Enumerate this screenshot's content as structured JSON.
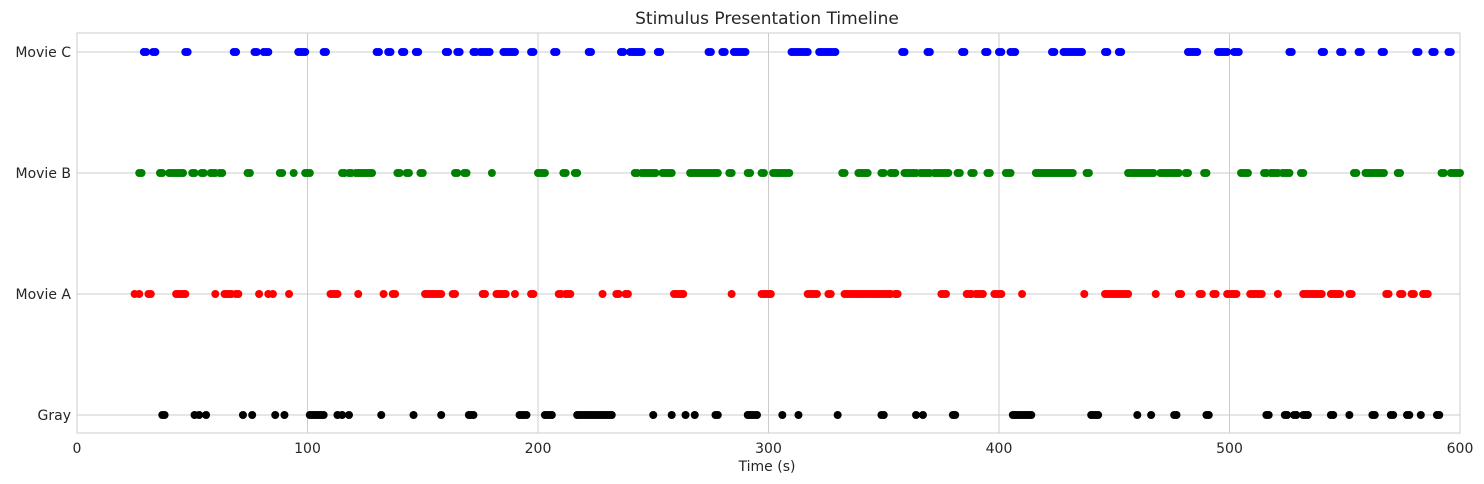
{
  "chart_data": {
    "type": "scatter",
    "title": "Stimulus Presentation Timeline",
    "xlabel": "Time (s)",
    "ylabel": "",
    "xlim": [
      0,
      600
    ],
    "xticks": [
      "0",
      "100",
      "200",
      "300",
      "400",
      "500",
      "600"
    ],
    "categories": [
      "Gray",
      "Movie A",
      "Movie B",
      "Movie C"
    ],
    "grid": true,
    "legend": "none",
    "series": [
      {
        "category": "Gray",
        "color": "#000000",
        "x": [
          37,
          38,
          51,
          53,
          56,
          72,
          76,
          86,
          90,
          101,
          102,
          103,
          104,
          105,
          106,
          107,
          113,
          115,
          118,
          132,
          146,
          158,
          170,
          171,
          172,
          192,
          193,
          194,
          195,
          203,
          204,
          205,
          206,
          217,
          218,
          219,
          220,
          221,
          222,
          223,
          224,
          225,
          226,
          227,
          228,
          229,
          230,
          231,
          232,
          250,
          258,
          264,
          268,
          277,
          278,
          291,
          292,
          293,
          294,
          295,
          306,
          313,
          330,
          349,
          350,
          364,
          367,
          380,
          381,
          406,
          407,
          408,
          409,
          410,
          411,
          412,
          413,
          414,
          440,
          441,
          442,
          443,
          460,
          466,
          476,
          477,
          490,
          491,
          516,
          517,
          524,
          525,
          528,
          529,
          532,
          533,
          534,
          544,
          545,
          552,
          562,
          563,
          570,
          571,
          577,
          578,
          583,
          590,
          591
        ]
      },
      {
        "category": "Movie A",
        "color": "#ff0000",
        "x": [
          25,
          27,
          31,
          32,
          43,
          44,
          45,
          46,
          47,
          60,
          64,
          65,
          66,
          67,
          69,
          70,
          79,
          83,
          85,
          92,
          110,
          111,
          112,
          113,
          122,
          133,
          137,
          138,
          151,
          152,
          153,
          154,
          155,
          156,
          157,
          158,
          163,
          164,
          176,
          177,
          182,
          183,
          184,
          185,
          186,
          190,
          197,
          198,
          209,
          210,
          212,
          213,
          214,
          228,
          234,
          235,
          238,
          239,
          259,
          260,
          261,
          262,
          263,
          284,
          297,
          298,
          299,
          300,
          301,
          317,
          318,
          319,
          320,
          321,
          326,
          327,
          333,
          334,
          335,
          336,
          337,
          338,
          339,
          340,
          341,
          342,
          343,
          344,
          345,
          346,
          347,
          348,
          349,
          350,
          351,
          352,
          353,
          355,
          356,
          375,
          376,
          377,
          386,
          387,
          388,
          390,
          391,
          392,
          393,
          398,
          399,
          400,
          401,
          410,
          437,
          446,
          447,
          448,
          449,
          450,
          451,
          452,
          453,
          454,
          455,
          456,
          468,
          478,
          479,
          487,
          488,
          493,
          494,
          499,
          500,
          501,
          502,
          503,
          509,
          510,
          511,
          512,
          513,
          514,
          521,
          532,
          533,
          534,
          535,
          536,
          537,
          538,
          539,
          540,
          544,
          545,
          546,
          547,
          548,
          552,
          553,
          568,
          569,
          574,
          575,
          579,
          580,
          584,
          585,
          586
        ]
      },
      {
        "category": "Movie B",
        "color": "#008000",
        "x": [
          27,
          28,
          36,
          37,
          40,
          41,
          42,
          43,
          44,
          45,
          46,
          50,
          51,
          54,
          55,
          58,
          59,
          60,
          62,
          63,
          74,
          75,
          88,
          89,
          94,
          99,
          100,
          101,
          115,
          116,
          118,
          119,
          121,
          122,
          123,
          124,
          125,
          126,
          127,
          128,
          139,
          140,
          143,
          144,
          149,
          150,
          164,
          165,
          168,
          169,
          180,
          200,
          201,
          202,
          203,
          211,
          212,
          216,
          217,
          242,
          243,
          245,
          246,
          247,
          248,
          249,
          250,
          251,
          254,
          255,
          256,
          257,
          258,
          266,
          267,
          268,
          269,
          270,
          271,
          272,
          273,
          274,
          275,
          276,
          277,
          278,
          283,
          284,
          291,
          292,
          297,
          298,
          302,
          303,
          304,
          305,
          306,
          307,
          308,
          309,
          332,
          333,
          339,
          340,
          341,
          342,
          343,
          349,
          350,
          353,
          354,
          355,
          359,
          360,
          361,
          362,
          363,
          364,
          366,
          367,
          368,
          369,
          370,
          372,
          373,
          374,
          375,
          376,
          377,
          378,
          382,
          383,
          388,
          389,
          395,
          396,
          403,
          404,
          405,
          416,
          417,
          418,
          419,
          420,
          421,
          422,
          423,
          424,
          425,
          426,
          427,
          428,
          429,
          430,
          431,
          432,
          438,
          439,
          456,
          457,
          458,
          459,
          460,
          461,
          462,
          463,
          464,
          465,
          466,
          467,
          470,
          471,
          472,
          473,
          474,
          475,
          476,
          477,
          478,
          481,
          482,
          489,
          490,
          505,
          506,
          507,
          508,
          515,
          516,
          518,
          519,
          520,
          521,
          523,
          524,
          525,
          526,
          531,
          532,
          554,
          555,
          559,
          560,
          561,
          562,
          563,
          564,
          565,
          566,
          567,
          573,
          574,
          592,
          593,
          596,
          597,
          598,
          599,
          600
        ]
      },
      {
        "category": "Movie C",
        "color": "#0000ff",
        "x": [
          29,
          30,
          33,
          34,
          47,
          48,
          68,
          69,
          77,
          78,
          81,
          82,
          83,
          96,
          97,
          98,
          99,
          107,
          108,
          130,
          131,
          135,
          136,
          141,
          142,
          147,
          148,
          160,
          161,
          165,
          166,
          172,
          173,
          175,
          176,
          177,
          178,
          179,
          185,
          186,
          187,
          188,
          189,
          190,
          197,
          198,
          207,
          208,
          222,
          223,
          236,
          237,
          240,
          241,
          242,
          243,
          244,
          245,
          252,
          253,
          274,
          275,
          280,
          281,
          285,
          286,
          287,
          288,
          289,
          290,
          310,
          311,
          312,
          313,
          314,
          315,
          316,
          317,
          322,
          323,
          324,
          325,
          326,
          327,
          328,
          329,
          358,
          359,
          369,
          370,
          384,
          385,
          394,
          395,
          400,
          401,
          405,
          406,
          407,
          423,
          424,
          428,
          429,
          430,
          431,
          432,
          433,
          434,
          435,
          436,
          446,
          447,
          452,
          453,
          482,
          483,
          484,
          485,
          486,
          495,
          496,
          497,
          498,
          499,
          502,
          503,
          504,
          526,
          527,
          540,
          541,
          548,
          549,
          556,
          557,
          566,
          567,
          581,
          582,
          588,
          589,
          595,
          596
        ]
      }
    ]
  }
}
